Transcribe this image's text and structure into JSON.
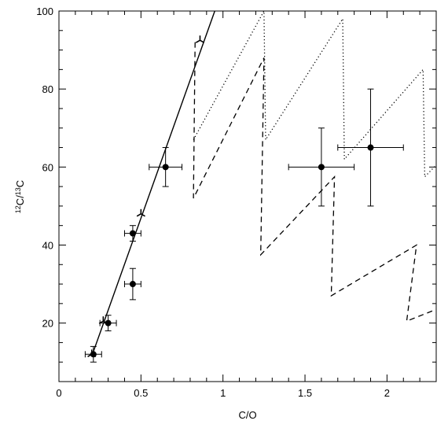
{
  "chart_data": {
    "type": "scatter",
    "xlabel": "C/O",
    "ylabel": "12C/13C",
    "ylabel_parts": {
      "iso1": "12",
      "elem1": "C/",
      "iso2": "13",
      "elem2": "C"
    },
    "xlim": [
      0,
      2.3
    ],
    "ylim": [
      5,
      100
    ],
    "xticks": [
      0,
      0.5,
      1,
      1.5,
      2
    ],
    "xtick_labels": [
      "0",
      "0.5",
      "1",
      "1.5",
      "2"
    ],
    "yticks": [
      20,
      40,
      60,
      80,
      100
    ],
    "ytick_labels": [
      "20",
      "40",
      "60",
      "80",
      "100"
    ],
    "grid": false,
    "observations": [
      {
        "x": 0.21,
        "y": 12,
        "xerr": 0.05,
        "yerr": 2
      },
      {
        "x": 0.3,
        "y": 20,
        "xerr": 0.05,
        "yerr": 2
      },
      {
        "x": 0.45,
        "y": 43,
        "xerr": 0.05,
        "yerr": 2
      },
      {
        "x": 0.45,
        "y": 30,
        "xerr": 0.05,
        "yerr": 4
      },
      {
        "x": 0.65,
        "y": 60,
        "xerr": 0.1,
        "yerr": 5
      },
      {
        "x": 1.6,
        "y": 60,
        "xerr": 0.2,
        "yerr": 10
      },
      {
        "x": 1.9,
        "y": 65,
        "xerr": 0.2,
        "yerr": 15
      }
    ],
    "model_line": {
      "style": "solid",
      "points": [
        [
          0.2,
          11.5
        ],
        [
          0.95,
          100
        ]
      ]
    },
    "model_markers": [
      {
        "x": 0.2,
        "y": 12
      },
      {
        "x": 0.27,
        "y": 20.5
      },
      {
        "x": 0.5,
        "y": 48
      },
      {
        "x": 0.86,
        "y": 92.5
      }
    ],
    "series": [
      {
        "style": "dotted",
        "points": [
          [
            0.82,
            67
          ],
          [
            1.25,
            100
          ],
          [
            1.26,
            67
          ],
          [
            1.73,
            98
          ],
          [
            1.74,
            62
          ],
          [
            2.22,
            85
          ],
          [
            2.23,
            57.5
          ],
          [
            2.3,
            60.5
          ]
        ]
      },
      {
        "style": "dashed",
        "points": [
          [
            0.83,
            92
          ],
          [
            0.82,
            52
          ],
          [
            1.25,
            88
          ],
          [
            1.23,
            37.5
          ],
          [
            1.68,
            57.5
          ],
          [
            1.66,
            27
          ],
          [
            2.18,
            40
          ],
          [
            2.12,
            20.5
          ],
          [
            2.3,
            23.5
          ]
        ]
      }
    ]
  }
}
